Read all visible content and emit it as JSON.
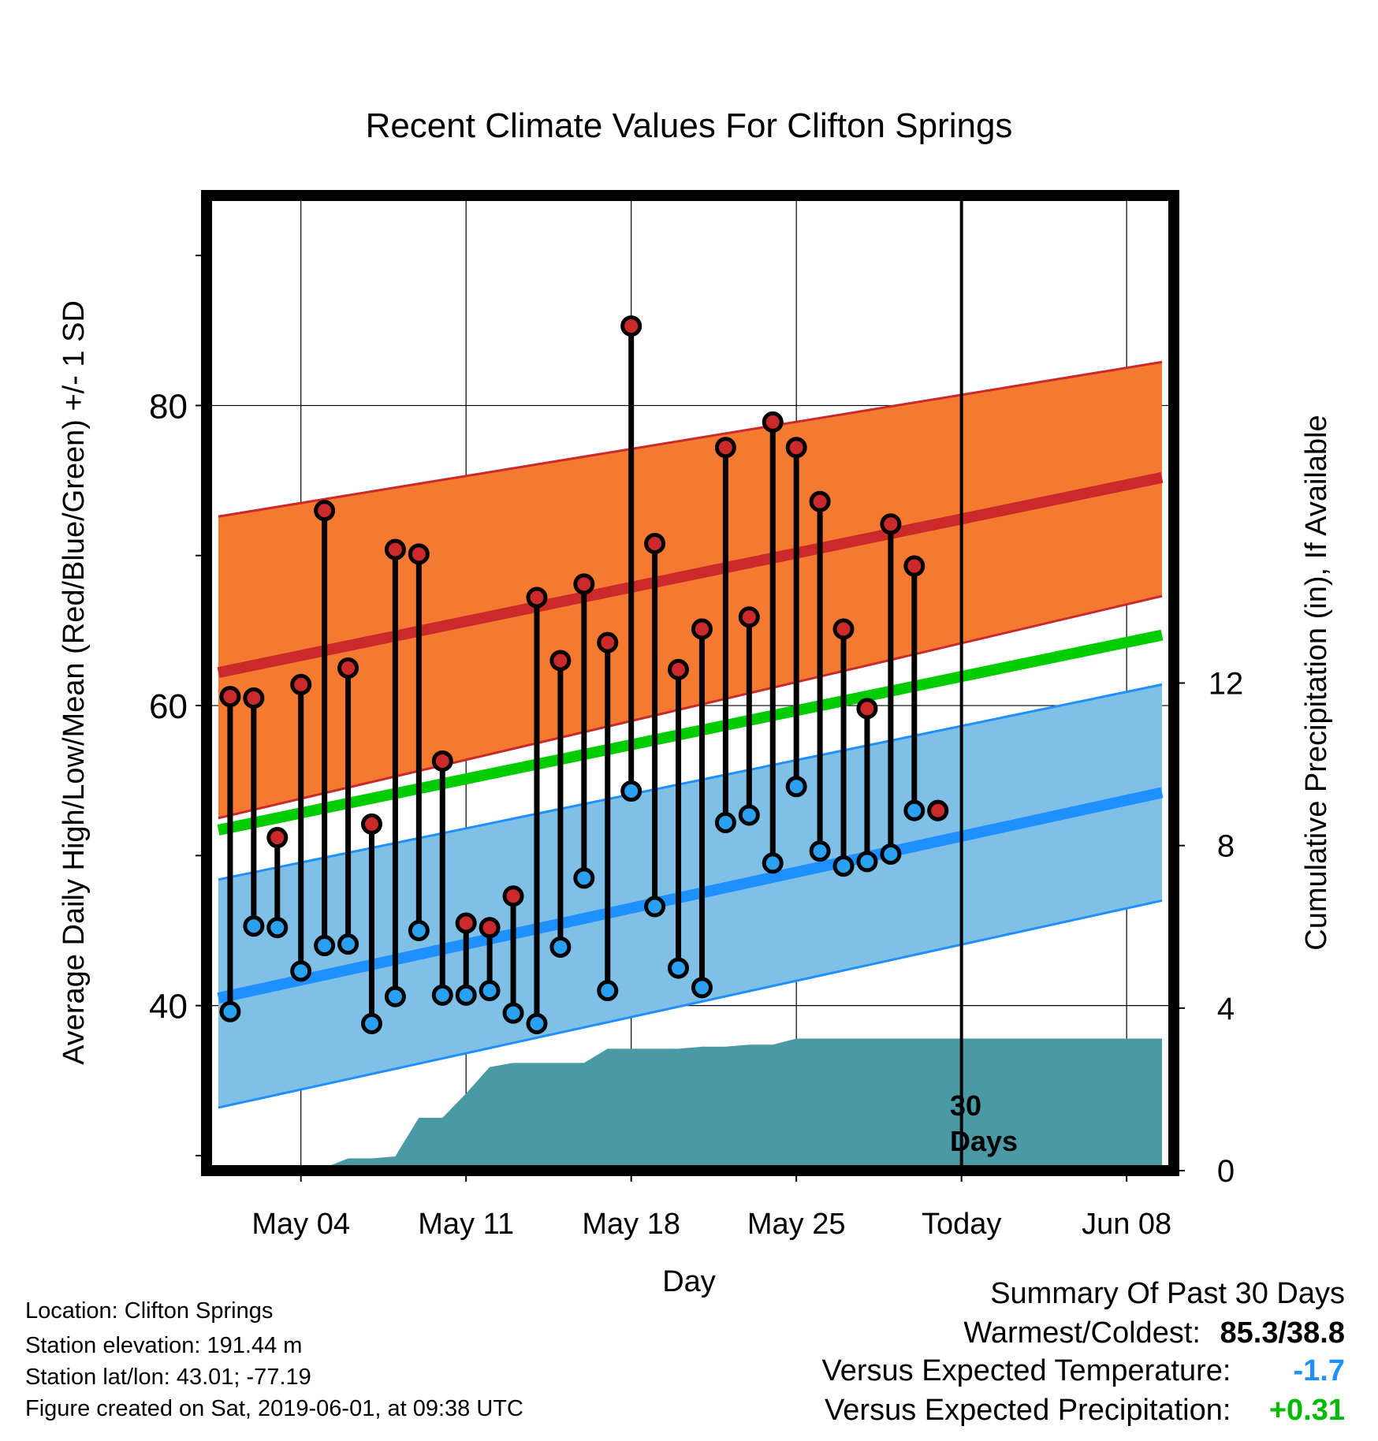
{
  "chart_data": {
    "type": "line",
    "title": "Recent Climate Values For Clifton Springs",
    "xlabel": "Day",
    "ylabel": "Average Daily High/Low/Mean (Red/Blue/Green) +/- 1 SD",
    "y2label": "Cumulative Precipitation (in), If Available",
    "xlim": [
      0,
      41
    ],
    "ylim": [
      29,
      94
    ],
    "y2lim": [
      0,
      24
    ],
    "x_ticks": [
      {
        "x": 4,
        "label": "May 04"
      },
      {
        "x": 11,
        "label": "May 11"
      },
      {
        "x": 18,
        "label": "May 18"
      },
      {
        "x": 25,
        "label": "May 25"
      },
      {
        "x": 32,
        "label": "Today"
      },
      {
        "x": 39,
        "label": "Jun 08"
      }
    ],
    "y_ticks": [
      40,
      60,
      80
    ],
    "y_minor_ticks": [
      30,
      50,
      70,
      90
    ],
    "y2_ticks": [
      0,
      4,
      8,
      12
    ],
    "today_x": 32,
    "today_annotation": [
      "30",
      "Days"
    ],
    "normals": {
      "x": [
        0.5,
        40.5
      ],
      "high_mean": [
        62.2,
        75.2
      ],
      "high_upper": [
        72.6,
        82.9
      ],
      "high_lower": [
        52.5,
        67.3
      ],
      "mean": [
        51.7,
        64.7
      ],
      "low_mean": [
        40.5,
        54.2
      ],
      "low_upper": [
        48.4,
        61.4
      ],
      "low_lower": [
        33.2,
        47.0
      ]
    },
    "series": [
      {
        "name": "Daily High",
        "x": [
          1,
          2,
          3,
          4,
          5,
          6,
          7,
          8,
          9,
          10,
          11,
          12,
          13,
          14,
          15,
          16,
          17,
          18,
          19,
          20,
          21,
          22,
          23,
          24,
          25,
          26,
          27,
          28,
          29,
          30,
          31
        ],
        "values": [
          60.6,
          60.5,
          51.2,
          61.4,
          73.0,
          62.5,
          52.1,
          70.4,
          70.1,
          56.3,
          45.5,
          45.2,
          47.3,
          67.2,
          63.0,
          68.1,
          64.2,
          85.3,
          70.8,
          62.4,
          65.1,
          77.2,
          65.9,
          78.9,
          77.2,
          73.6,
          65.1,
          59.8,
          72.1,
          69.3,
          53.0
        ]
      },
      {
        "name": "Daily Low",
        "x": [
          1,
          2,
          3,
          4,
          5,
          6,
          7,
          8,
          9,
          10,
          11,
          12,
          13,
          14,
          15,
          16,
          17,
          18,
          19,
          20,
          21,
          22,
          23,
          24,
          25,
          26,
          27,
          28,
          29,
          30,
          31
        ],
        "values": [
          39.6,
          45.3,
          45.2,
          42.3,
          44.0,
          44.1,
          38.8,
          40.6,
          45.0,
          40.7,
          40.7,
          41.0,
          39.5,
          38.8,
          43.9,
          48.5,
          41.0,
          54.3,
          46.6,
          42.5,
          41.2,
          52.2,
          52.7,
          49.5,
          54.6,
          50.3,
          49.3,
          49.6,
          50.1,
          53.0,
          53.0
        ]
      },
      {
        "name": "Cumulative Precipitation",
        "x": [
          0.5,
          1,
          2,
          3,
          4,
          5,
          6,
          7,
          8,
          9,
          10,
          11,
          12,
          13,
          14,
          15,
          16,
          17,
          18,
          19,
          20,
          21,
          22,
          23,
          24,
          25,
          26,
          27,
          28,
          29,
          30,
          31,
          32,
          40.5
        ],
        "values": [
          0,
          0,
          0.02,
          0.05,
          0.07,
          0.07,
          0.3,
          0.3,
          0.35,
          1.3,
          1.3,
          1.9,
          2.55,
          2.65,
          2.65,
          2.65,
          2.65,
          3.0,
          3.0,
          3.0,
          3.0,
          3.05,
          3.05,
          3.1,
          3.1,
          3.25,
          3.25,
          3.25,
          3.25,
          3.25,
          3.25,
          3.25,
          3.25,
          3.25
        ]
      }
    ],
    "colors": {
      "high_band": "#f47a32",
      "high_line": "#cc2a2a",
      "mean_line": "#00cc00",
      "low_band": "#80c0e6",
      "low_line": "#1e90ff",
      "low_band_edge": "#1e90ff",
      "precip": "#4a9aa6",
      "high_marker": "#cc2a2a",
      "low_marker": "#2aa0f0",
      "departure_temp": "#1e90ff",
      "departure_precip": "#00bb00"
    }
  },
  "info": {
    "location": "Location: Clifton Springs",
    "elevation": "Station elevation: 191.44 m",
    "latlon": "Station lat/lon: 43.01; -77.19",
    "created": "Figure created on Sat, 2019-06-01, at 09:38 UTC"
  },
  "summary": {
    "heading": "Summary Of Past 30 Days",
    "warm_cold_label": "Warmest/Coldest:",
    "warm_cold_value": "85.3/38.8",
    "temp_label": "Versus Expected Temperature:",
    "temp_value": "-1.7",
    "precip_label": "Versus Expected Precipitation:",
    "precip_value": "+0.31"
  }
}
